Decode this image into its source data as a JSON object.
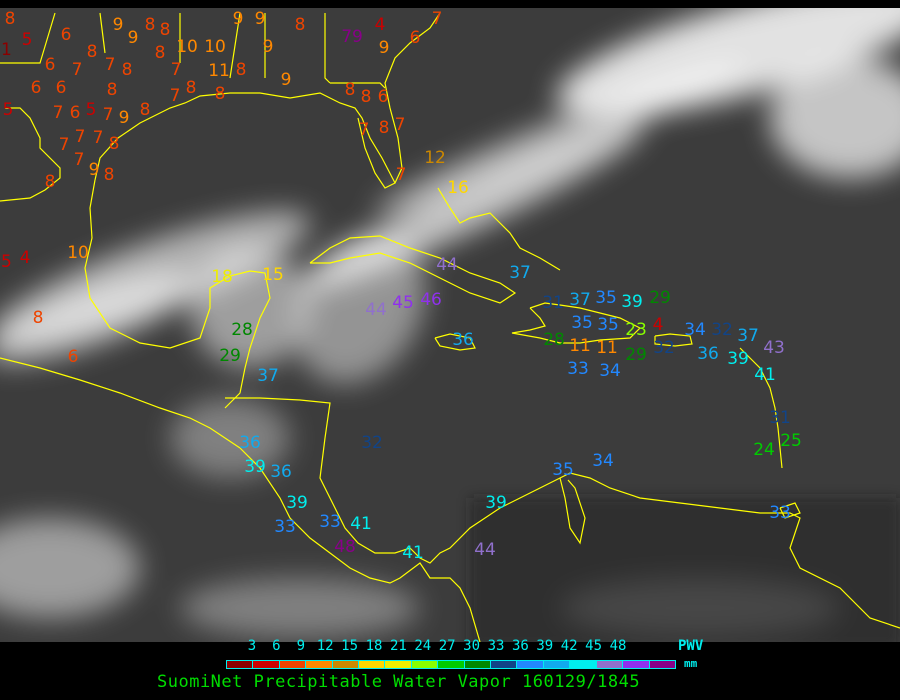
{
  "title": "SuomiNet Precipitable Water Vapor 160129/1845",
  "legend": {
    "unit_line1": "PWV",
    "unit_line2": "mm",
    "ticks": [
      "3",
      "6",
      "9",
      "12",
      "15",
      "18",
      "21",
      "24",
      "27",
      "30",
      "33",
      "36",
      "39",
      "42",
      "45",
      "48"
    ],
    "colors": [
      "#8b0000",
      "#cc0000",
      "#ee4400",
      "#ff8800",
      "#cc8800",
      "#ffd700",
      "#eeee00",
      "#88ff00",
      "#00cc00",
      "#008800",
      "#114488",
      "#2288ff",
      "#11aaee",
      "#00eeee",
      "#9070cc",
      "#9030ee",
      "#880088"
    ]
  },
  "map_colors": {
    "coastline": "#ffff00",
    "background": "#3c3c3c",
    "cloud": "#ffffff"
  },
  "stations": [
    "8",
    "5",
    "1",
    "6",
    "8",
    "6",
    "7",
    "8",
    "6",
    "6",
    "7",
    "8",
    "5",
    "7",
    "6",
    "5",
    "7",
    "9",
    "7",
    "7",
    "8",
    "7",
    "7",
    "9",
    "8",
    "8",
    "8",
    "9",
    "9",
    "8",
    "8",
    "7",
    "8",
    "10",
    "10",
    "11",
    "8",
    "8",
    "7",
    "8",
    "9",
    "9",
    "9",
    "9",
    "8",
    "4",
    "7",
    "6",
    "9",
    "79",
    "8",
    "8",
    "6",
    "7",
    "8",
    "7",
    "7",
    "12",
    "16",
    "4",
    "5",
    "10",
    "8",
    "6",
    "18",
    "15",
    "28",
    "29",
    "37",
    "44",
    "45",
    "46",
    "44",
    "36",
    "37",
    "31",
    "37",
    "35",
    "35",
    "35",
    "39",
    "11",
    "11",
    "28",
    "23",
    "29",
    "34",
    "4",
    "29",
    "32",
    "33",
    "34",
    "32",
    "36",
    "37",
    "39",
    "43",
    "41",
    "31",
    "25",
    "24",
    "36",
    "32",
    "39",
    "36",
    "39",
    "33",
    "33",
    "48",
    "41",
    "41",
    "44",
    "39",
    "35",
    "34",
    "33"
  ]
}
